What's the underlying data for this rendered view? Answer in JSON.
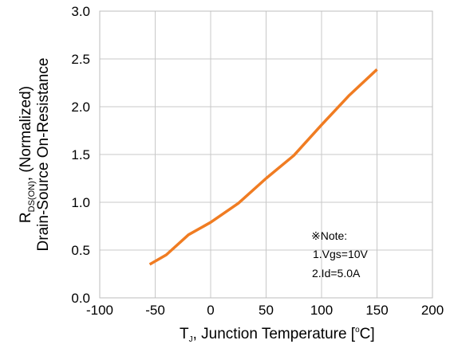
{
  "chart_data": {
    "type": "line",
    "xlabel": {
      "symbol": "T",
      "subscript": "J",
      "text": ", Junction Temperature [",
      "unit_sup": "o",
      "unit": "C]"
    },
    "ylabel": {
      "line1_symbol": "R",
      "line1_subscript": "DS(ON)",
      "line1_text": ", (Normalized)",
      "line2": "Drain-Source On-Resistance"
    },
    "xlim": [
      -100,
      200
    ],
    "ylim": [
      0.0,
      3.0
    ],
    "x_ticks": [
      -100,
      -50,
      0,
      50,
      100,
      150,
      200
    ],
    "x_tick_labels": [
      "-100",
      "-50",
      "0",
      "50",
      "100",
      "150",
      "200"
    ],
    "y_ticks": [
      0.0,
      0.5,
      1.0,
      1.5,
      2.0,
      2.5,
      3.0
    ],
    "y_tick_labels": [
      "0.0",
      "0.5",
      "1.0",
      "1.5",
      "2.0",
      "2.5",
      "3.0"
    ],
    "grid": true,
    "series": [
      {
        "color": "#f07c22",
        "x": [
          -55,
          -40,
          -20,
          0,
          25,
          50,
          75,
          100,
          125,
          150
        ],
        "y": [
          0.35,
          0.45,
          0.66,
          0.79,
          0.99,
          1.25,
          1.49,
          1.81,
          2.12,
          2.39
        ]
      }
    ],
    "annotation": {
      "title": "※Note:",
      "lines": [
        "1.Vgs=10V",
        "2.Id=5.0A"
      ]
    }
  }
}
